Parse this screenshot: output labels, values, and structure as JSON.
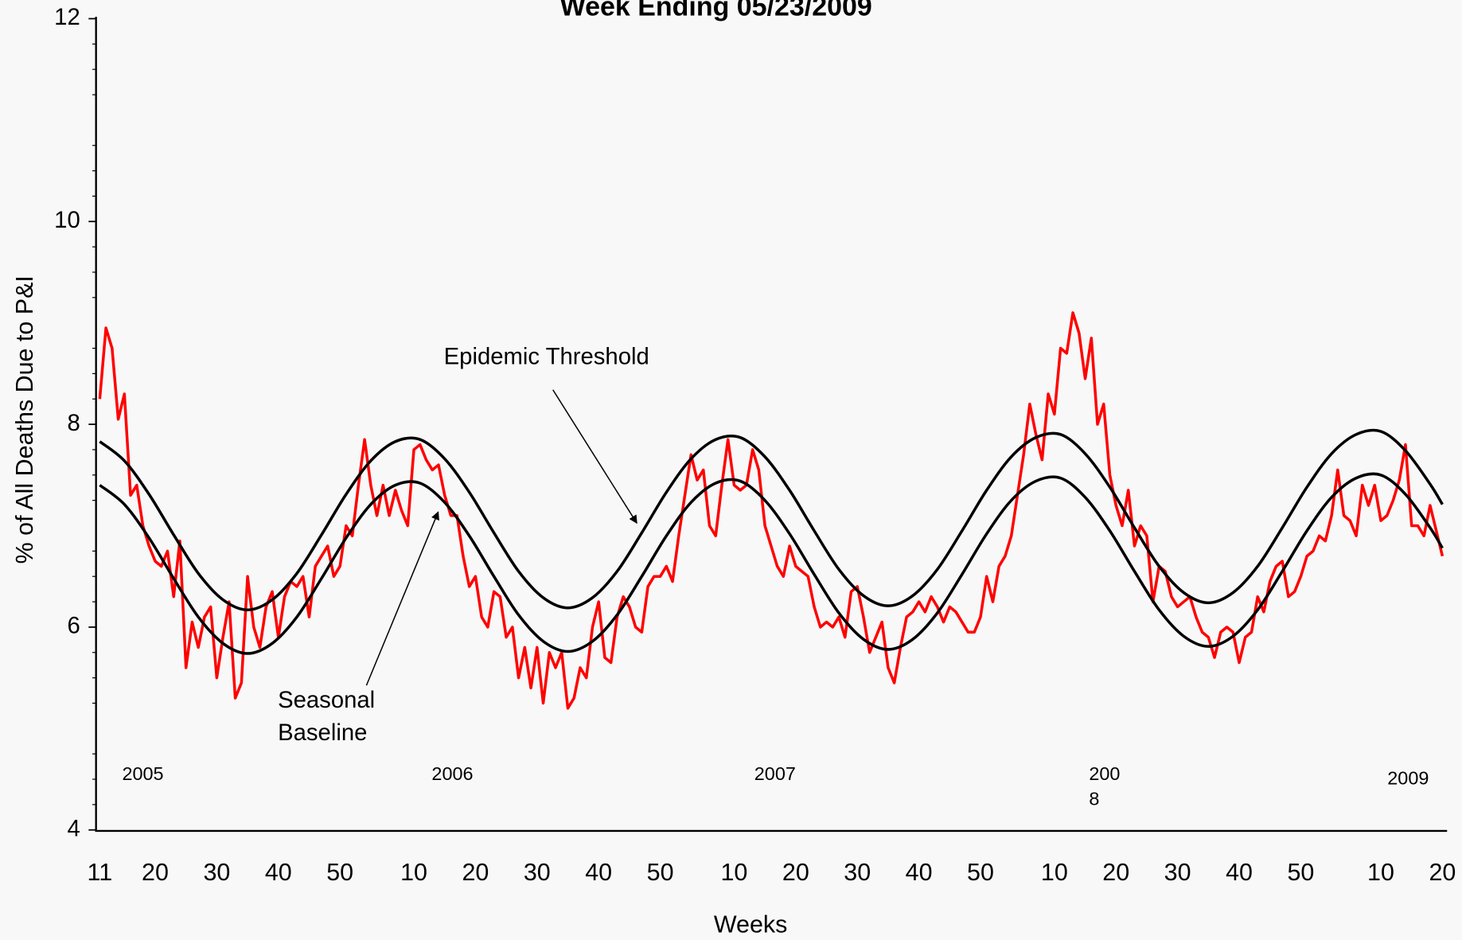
{
  "chart_data": {
    "type": "line",
    "title": "Week Ending 05/23/2009",
    "y_label": "% of All Deaths Due to P&I",
    "x_label": "Weeks",
    "xlim": [
      0,
      218
    ],
    "ylim": [
      4,
      12
    ],
    "yticks": [
      4,
      6,
      8,
      10,
      12
    ],
    "yminorticks": [
      4.25,
      4.5,
      4.75,
      5.25,
      5.5,
      5.75,
      6.25,
      6.5,
      6.75,
      7.25,
      7.5,
      7.75,
      8.25,
      8.5,
      8.75,
      9.25,
      9.5,
      9.75,
      10.25,
      10.5,
      10.75,
      11.25,
      11.5,
      11.75
    ],
    "xticks": [
      {
        "value": 0,
        "label": "11"
      },
      {
        "value": 9,
        "label": "20"
      },
      {
        "value": 19,
        "label": "30"
      },
      {
        "value": 29,
        "label": "40"
      },
      {
        "value": 39,
        "label": "50"
      },
      {
        "value": 51,
        "label": "10"
      },
      {
        "value": 61,
        "label": "20"
      },
      {
        "value": 71,
        "label": "30"
      },
      {
        "value": 81,
        "label": "40"
      },
      {
        "value": 91,
        "label": "50"
      },
      {
        "value": 103,
        "label": "10"
      },
      {
        "value": 113,
        "label": "20"
      },
      {
        "value": 123,
        "label": "30"
      },
      {
        "value": 133,
        "label": "40"
      },
      {
        "value": 143,
        "label": "50"
      },
      {
        "value": 155,
        "label": "10"
      },
      {
        "value": 165,
        "label": "20"
      },
      {
        "value": 175,
        "label": "30"
      },
      {
        "value": 185,
        "label": "40"
      },
      {
        "value": 195,
        "label": "50"
      },
      {
        "value": 208,
        "label": "10"
      },
      {
        "value": 218,
        "label": "20"
      }
    ],
    "year_labels": [
      [
        "2005"
      ],
      [
        "2006"
      ],
      [
        "2007"
      ],
      [
        "200",
        "8"
      ],
      [
        "2009"
      ]
    ],
    "annotations": [
      {
        "lines": [
          "Epidemic Threshold"
        ]
      },
      {
        "lines": [
          "Seasonal",
          "Baseline"
        ]
      }
    ],
    "series": [
      {
        "color": "#ff0000",
        "x": [
          0,
          1,
          2,
          3,
          4,
          5,
          6,
          7,
          8,
          9,
          10,
          11,
          12,
          13,
          14,
          15,
          16,
          17,
          18,
          19,
          20,
          21,
          22,
          23,
          24,
          25,
          26,
          27,
          28,
          29,
          30,
          31,
          32,
          33,
          34,
          35,
          36,
          37,
          38,
          39,
          40,
          41,
          42,
          43,
          44,
          45,
          46,
          47,
          48,
          49,
          50,
          51,
          52,
          53,
          54,
          55,
          56,
          57,
          58,
          59,
          60,
          61,
          62,
          63,
          64,
          65,
          66,
          67,
          68,
          69,
          70,
          71,
          72,
          73,
          74,
          75,
          76,
          77,
          78,
          79,
          80,
          81,
          82,
          83,
          84,
          85,
          86,
          87,
          88,
          89,
          90,
          91,
          92,
          93,
          94,
          95,
          96,
          97,
          98,
          99,
          100,
          101,
          102,
          103,
          104,
          105,
          106,
          107,
          108,
          109,
          110,
          111,
          112,
          113,
          114,
          115,
          116,
          117,
          118,
          119,
          120,
          121,
          122,
          123,
          124,
          125,
          126,
          127,
          128,
          129,
          130,
          131,
          132,
          133,
          134,
          135,
          136,
          137,
          138,
          139,
          140,
          141,
          142,
          143,
          144,
          145,
          146,
          147,
          148,
          149,
          150,
          151,
          152,
          153,
          154,
          155,
          156,
          157,
          158,
          159,
          160,
          161,
          162,
          163,
          164,
          165,
          166,
          167,
          168,
          169,
          170,
          171,
          172,
          173,
          174,
          175,
          176,
          177,
          178,
          179,
          180,
          181,
          182,
          183,
          184,
          185,
          186,
          187,
          188,
          189,
          190,
          191,
          192,
          193,
          194,
          195,
          196,
          197,
          198,
          199,
          200,
          201,
          202,
          203,
          204,
          205,
          206,
          207,
          208,
          209,
          210,
          211,
          212,
          213,
          214,
          215,
          216,
          217,
          218
        ],
        "values": [
          8.25,
          8.95,
          8.75,
          8.05,
          8.3,
          7.3,
          7.4,
          7.0,
          6.8,
          6.65,
          6.6,
          6.75,
          6.3,
          6.85,
          5.6,
          6.05,
          5.8,
          6.1,
          6.2,
          5.5,
          5.9,
          6.25,
          5.3,
          5.45,
          6.5,
          6.0,
          5.8,
          6.2,
          6.35,
          5.9,
          6.3,
          6.45,
          6.4,
          6.5,
          6.1,
          6.6,
          6.7,
          6.8,
          6.5,
          6.6,
          7.0,
          6.9,
          7.4,
          7.85,
          7.4,
          7.1,
          7.4,
          7.1,
          7.35,
          7.15,
          7.0,
          7.75,
          7.8,
          7.65,
          7.55,
          7.6,
          7.3,
          7.1,
          7.1,
          6.7,
          6.4,
          6.5,
          6.1,
          6.0,
          6.35,
          6.3,
          5.9,
          6.0,
          5.5,
          5.8,
          5.4,
          5.8,
          5.25,
          5.75,
          5.6,
          5.75,
          5.2,
          5.3,
          5.6,
          5.5,
          6.0,
          6.25,
          5.7,
          5.65,
          6.1,
          6.3,
          6.2,
          6.0,
          5.95,
          6.4,
          6.5,
          6.5,
          6.6,
          6.45,
          6.9,
          7.3,
          7.7,
          7.45,
          7.55,
          7.0,
          6.9,
          7.4,
          7.85,
          7.4,
          7.35,
          7.4,
          7.75,
          7.55,
          7.0,
          6.8,
          6.6,
          6.5,
          6.8,
          6.6,
          6.55,
          6.5,
          6.2,
          6.0,
          6.05,
          6.0,
          6.1,
          5.9,
          6.35,
          6.4,
          6.1,
          5.75,
          5.9,
          6.05,
          5.6,
          5.45,
          5.8,
          6.1,
          6.15,
          6.25,
          6.15,
          6.3,
          6.2,
          6.05,
          6.2,
          6.15,
          6.05,
          5.95,
          5.95,
          6.1,
          6.5,
          6.25,
          6.6,
          6.7,
          6.9,
          7.3,
          7.7,
          8.2,
          7.9,
          7.65,
          8.3,
          8.1,
          8.75,
          8.7,
          9.1,
          8.9,
          8.45,
          8.85,
          8.0,
          8.2,
          7.5,
          7.2,
          7.0,
          7.35,
          6.8,
          7.0,
          6.9,
          6.25,
          6.6,
          6.55,
          6.3,
          6.2,
          6.25,
          6.3,
          6.1,
          5.95,
          5.9,
          5.7,
          5.95,
          6.0,
          5.95,
          5.65,
          5.9,
          5.95,
          6.3,
          6.15,
          6.45,
          6.6,
          6.65,
          6.3,
          6.35,
          6.5,
          6.7,
          6.75,
          6.9,
          6.85,
          7.1,
          7.55,
          7.1,
          7.05,
          6.9,
          7.4,
          7.2,
          7.4,
          7.05,
          7.1,
          7.25,
          7.45,
          7.8,
          7.0,
          7.0,
          6.9,
          7.2,
          6.95,
          6.7
        ]
      },
      {
        "color": "#000000",
        "x": [
          0,
          4,
          8,
          12,
          16,
          20,
          24,
          28,
          32,
          36,
          40,
          44,
          48,
          52,
          56,
          60,
          64,
          68,
          72,
          76,
          80,
          84,
          88,
          92,
          96,
          100,
          104,
          108,
          112,
          116,
          120,
          124,
          128,
          132,
          136,
          140,
          144,
          148,
          152,
          156,
          160,
          164,
          168,
          172,
          176,
          180,
          184,
          188,
          192,
          196,
          200,
          204,
          208,
          212,
          216,
          218
        ],
        "values": [
          7.83,
          7.64,
          7.31,
          6.91,
          6.53,
          6.27,
          6.17,
          6.27,
          6.53,
          6.91,
          7.31,
          7.64,
          7.83,
          7.85,
          7.66,
          7.33,
          6.93,
          6.55,
          6.29,
          6.19,
          6.29,
          6.55,
          6.93,
          7.33,
          7.66,
          7.85,
          7.87,
          7.68,
          7.35,
          6.95,
          6.57,
          6.31,
          6.21,
          6.31,
          6.57,
          6.95,
          7.35,
          7.68,
          7.87,
          7.9,
          7.71,
          7.38,
          6.98,
          6.6,
          6.34,
          6.24,
          6.34,
          6.6,
          6.98,
          7.38,
          7.71,
          7.9,
          7.93,
          7.74,
          7.41,
          7.21
        ]
      },
      {
        "color": "#000000",
        "x": [
          0,
          4,
          8,
          12,
          16,
          20,
          24,
          28,
          32,
          36,
          40,
          44,
          48,
          52,
          56,
          60,
          64,
          68,
          72,
          76,
          80,
          84,
          88,
          92,
          96,
          100,
          104,
          108,
          112,
          116,
          120,
          124,
          128,
          132,
          136,
          140,
          144,
          148,
          152,
          156,
          160,
          164,
          168,
          172,
          176,
          180,
          184,
          188,
          192,
          196,
          200,
          204,
          208,
          212,
          216,
          218
        ],
        "values": [
          7.4,
          7.21,
          6.88,
          6.48,
          6.1,
          5.84,
          5.74,
          5.84,
          6.1,
          6.48,
          6.88,
          7.21,
          7.4,
          7.42,
          7.23,
          6.9,
          6.5,
          6.12,
          5.86,
          5.76,
          5.86,
          6.12,
          6.5,
          6.9,
          7.23,
          7.42,
          7.44,
          7.25,
          6.92,
          6.52,
          6.14,
          5.88,
          5.78,
          5.88,
          6.14,
          6.52,
          6.92,
          7.25,
          7.44,
          7.47,
          7.28,
          6.95,
          6.55,
          6.17,
          5.91,
          5.81,
          5.91,
          6.17,
          6.55,
          6.95,
          7.28,
          7.47,
          7.5,
          7.31,
          6.98,
          6.78
        ]
      }
    ]
  }
}
